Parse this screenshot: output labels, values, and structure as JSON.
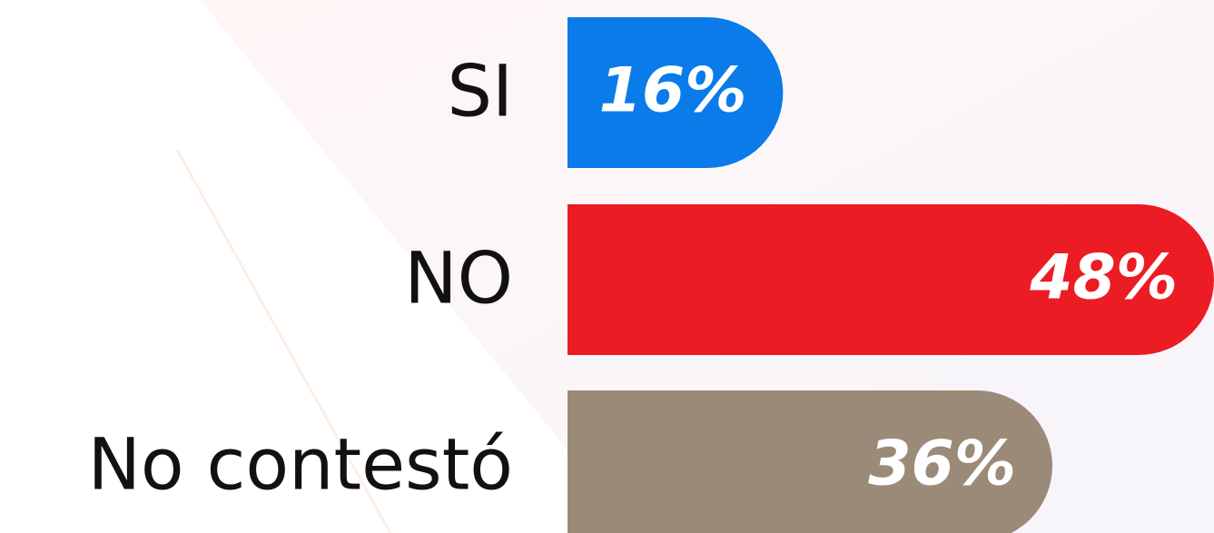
{
  "chart_data": {
    "type": "bar",
    "orientation": "horizontal",
    "categories": [
      "SI",
      "NO",
      "No contestó"
    ],
    "values": [
      16,
      48,
      36
    ],
    "value_labels": [
      "16%",
      "48%",
      "36%"
    ],
    "colors": [
      "#0a7be8",
      "#ec1c24",
      "#9c8a78"
    ]
  }
}
